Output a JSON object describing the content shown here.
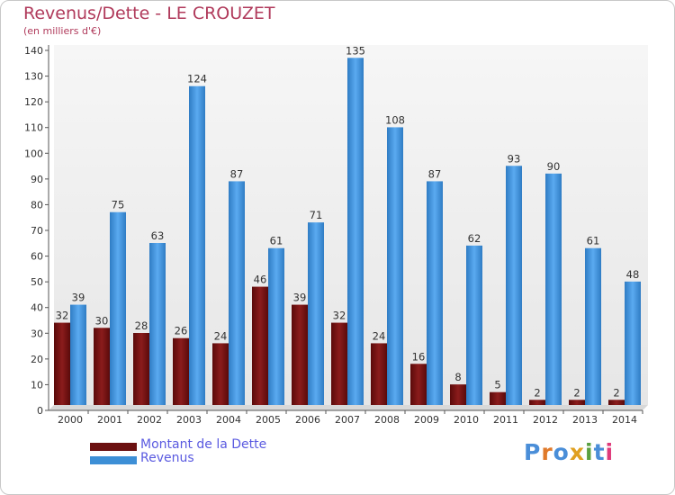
{
  "title": "Revenus/Dette - LE CROUZET",
  "subtitle": "(en milliers d'€)",
  "logo": "Proxiti",
  "colors": {
    "dette": "#7a1414",
    "revenus": "#3d8fd6",
    "title": "#b03a5b",
    "legend_text": "#5a5ae0"
  },
  "chart_data": {
    "type": "bar",
    "categories": [
      "2000",
      "2001",
      "2002",
      "2003",
      "2004",
      "2005",
      "2006",
      "2007",
      "2008",
      "2009",
      "2010",
      "2011",
      "2012",
      "2013",
      "2014"
    ],
    "series": [
      {
        "name": "Montant de la Dette",
        "values": [
          32,
          30,
          28,
          26,
          24,
          46,
          39,
          32,
          24,
          16,
          8,
          5,
          2,
          2,
          2
        ]
      },
      {
        "name": "Revenus",
        "values": [
          39,
          75,
          63,
          124,
          87,
          61,
          71,
          135,
          108,
          87,
          62,
          93,
          90,
          61,
          48
        ]
      }
    ],
    "ylim": [
      0,
      140
    ],
    "yticks": [
      0,
      10,
      20,
      30,
      40,
      50,
      60,
      70,
      80,
      90,
      100,
      110,
      120,
      130,
      140
    ],
    "grid": false,
    "legend": "bottom-left"
  }
}
